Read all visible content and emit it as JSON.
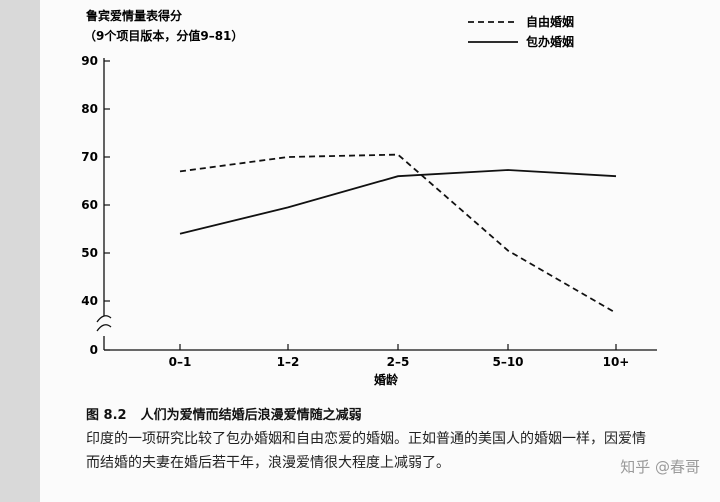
{
  "chart_data": {
    "type": "line",
    "title": "鲁宾爱情量表得分",
    "subtitle": "（9个项目版本，分值9–81）",
    "xlabel": "婚龄",
    "ylabel": "",
    "categories": [
      "0–1",
      "1–2",
      "2–5",
      "5–10",
      "10+"
    ],
    "y_ticks": [
      0,
      40,
      50,
      60,
      70,
      80,
      90
    ],
    "ylim": [
      30,
      90
    ],
    "axis_break": true,
    "grid": false,
    "legend_position": "top-right",
    "series": [
      {
        "name": "自由婚姻",
        "style": "dashed",
        "values": [
          67,
          70,
          70.5,
          50.5,
          37.5
        ]
      },
      {
        "name": "包办婚姻",
        "style": "solid",
        "values": [
          54,
          59.5,
          66,
          67.3,
          66
        ]
      }
    ]
  },
  "caption": {
    "number": "图 8.2",
    "text": "人们为爱情而结婚后浪漫爱情随之减弱"
  },
  "description": [
    "印度的一项研究比较了包办婚姻和自由恋爱的婚姻。正如普通的美国人的婚姻一样，因爱情",
    "而结婚的夫妻在婚后若干年，浪漫爱情很大程度上减弱了。"
  ],
  "watermark": "知乎 @春哥",
  "colors": {
    "line": "#111111",
    "background": "#fbfbfb",
    "sidebar": "#d9d9d9"
  }
}
